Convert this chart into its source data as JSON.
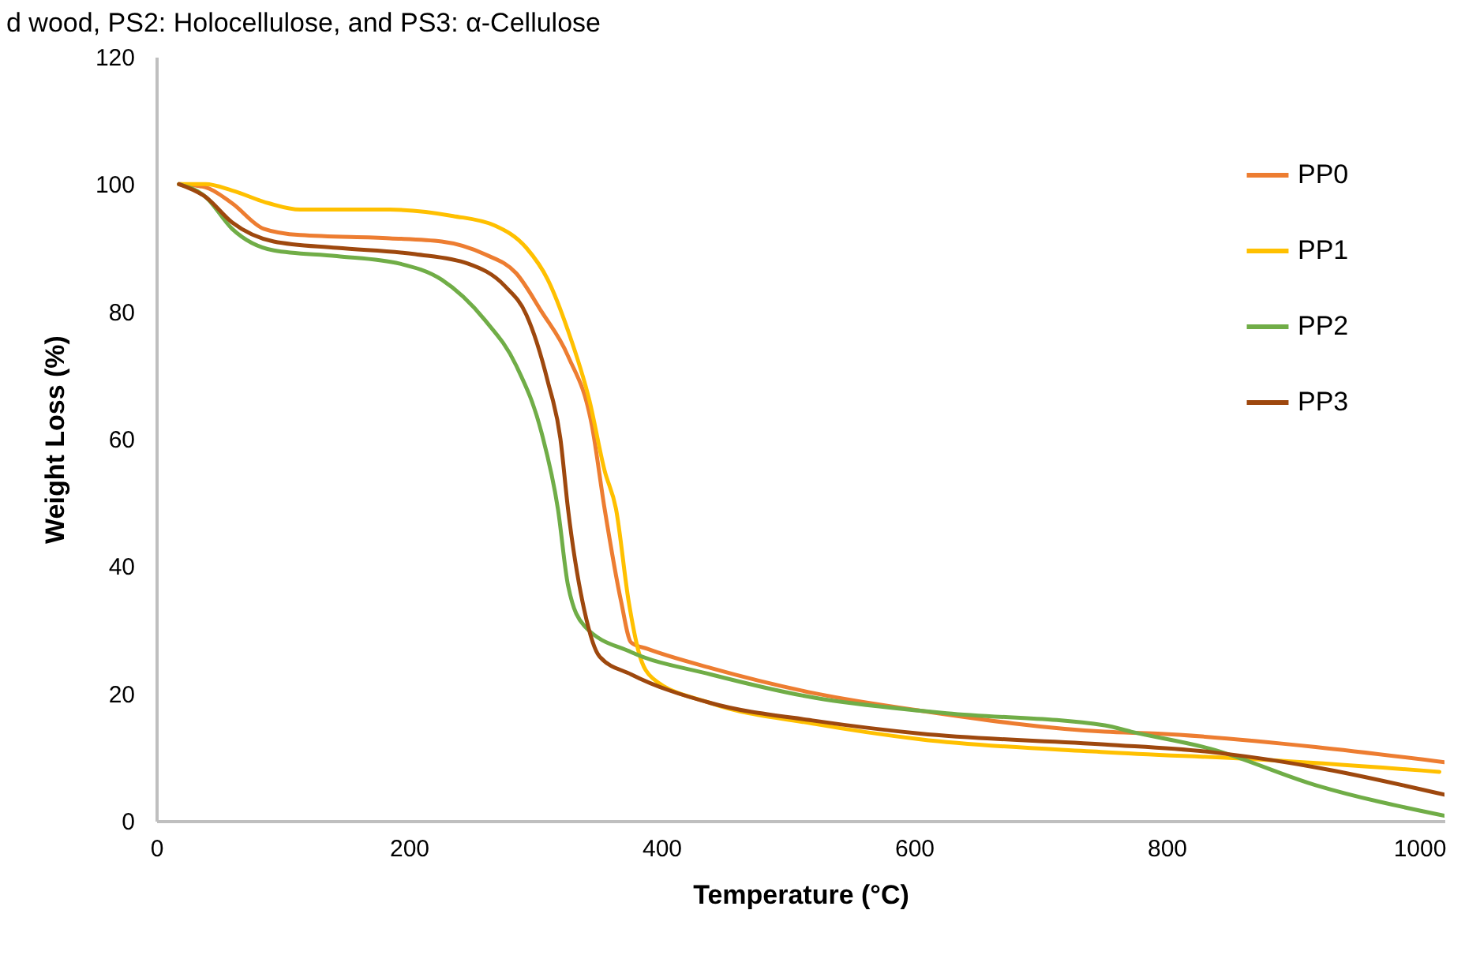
{
  "chart_data": {
    "type": "line",
    "title": "d wood, PS2: Holocellulose, and PS3: α-Cellulose",
    "xlabel": "Temperature (°C)",
    "ylabel": "Weight Loss (%)",
    "xlim": [
      0,
      1020
    ],
    "xticks": [
      0,
      200,
      400,
      600,
      800,
      1000
    ],
    "ylim": [
      0,
      120
    ],
    "yticks": [
      0,
      20,
      40,
      60,
      80,
      100,
      120
    ],
    "grid": false,
    "legend": "top right",
    "line_style": "solid",
    "marker": "none",
    "series": [
      {
        "name": "PP0",
        "color": "#ed7d31",
        "x": [
          18,
          39,
          60,
          85,
          114,
          185,
          226,
          260,
          285,
          305,
          326,
          345,
          355,
          368,
          376,
          389,
          439,
          522,
          605,
          751,
          793,
          918,
          1020
        ],
        "values": [
          100,
          99.5,
          97,
          93,
          92,
          91.5,
          91,
          89,
          86,
          80,
          73,
          62,
          49,
          34.5,
          28,
          27,
          24,
          20,
          17.3,
          14,
          13.7,
          11.6,
          9.2
        ]
      },
      {
        "name": "PP1",
        "color": "#ffc000",
        "x": [
          18,
          39,
          60,
          89,
          114,
          185,
          235,
          268,
          293,
          310,
          326,
          343,
          355,
          364,
          374,
          382,
          393,
          439,
          522,
          605,
          751,
          876,
          1016
        ],
        "values": [
          100,
          100,
          99,
          97,
          96,
          96,
          95,
          93.5,
          90,
          85,
          77,
          66,
          55,
          49,
          34.5,
          26.5,
          22.4,
          18.5,
          15.2,
          12.8,
          10.8,
          9.6,
          7.7
        ]
      },
      {
        "name": "PP2",
        "color": "#70ad47",
        "x": [
          18,
          39,
          60,
          93,
          143,
          193,
          226,
          260,
          285,
          305,
          318,
          326,
          339,
          376,
          439,
          522,
          605,
          626,
          751,
          772,
          835,
          918,
          1020
        ],
        "values": [
          100,
          98,
          93,
          89.6,
          88.7,
          87.5,
          85,
          78.7,
          71.5,
          61,
          49,
          37,
          30.6,
          26.5,
          23,
          19.3,
          17.3,
          16.9,
          15,
          14,
          11.3,
          5.6,
          0.8
        ]
      },
      {
        "name": "PP3",
        "color": "#9e480e",
        "x": [
          18,
          39,
          60,
          93,
          143,
          205,
          247,
          276,
          293,
          310,
          320,
          326,
          339,
          351,
          376,
          439,
          522,
          605,
          751,
          835,
          918,
          1020
        ],
        "values": [
          100,
          98,
          94,
          91,
          90,
          89,
          87.5,
          84,
          79.5,
          69,
          60,
          49,
          33,
          25.8,
          23,
          18.5,
          15.7,
          13.7,
          12,
          10.8,
          8.4,
          4.1
        ]
      }
    ]
  }
}
